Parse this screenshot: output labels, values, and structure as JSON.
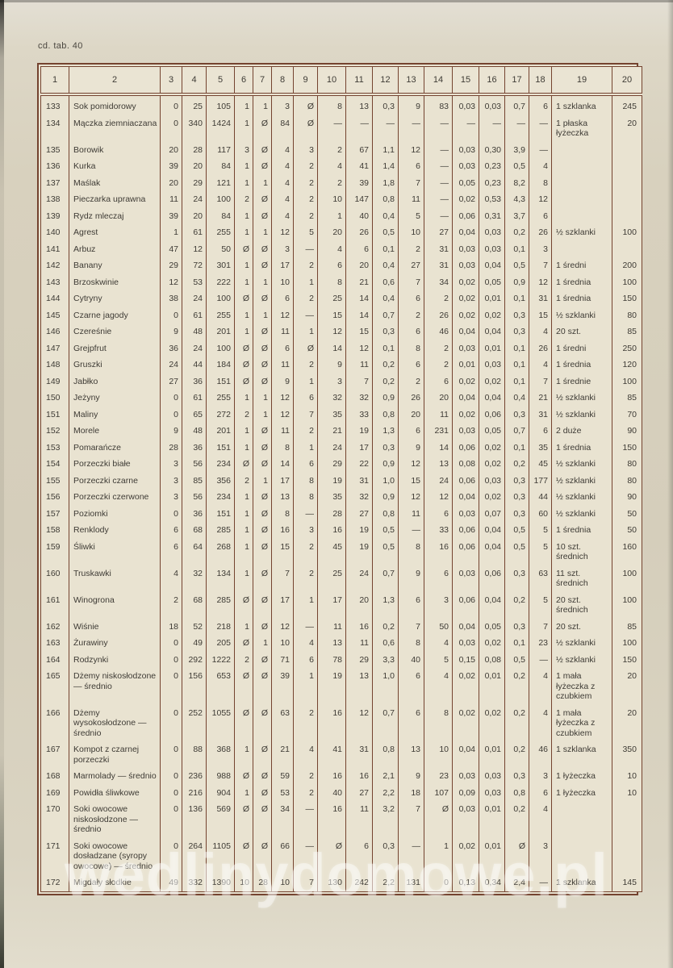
{
  "page": {
    "header_note": "cd. tab. 40",
    "watermark": "wedlinydomowe.pl"
  },
  "colors": {
    "paper": "#d8d1be",
    "cell_background": "#e9e3d1",
    "table_border": "#74432f",
    "text": "#3e3b35",
    "watermark": "rgba(255,255,255,0.42)"
  },
  "table": {
    "headers": [
      "1",
      "2",
      "3",
      "4",
      "5",
      "6",
      "7",
      "8",
      "9",
      "10",
      "11",
      "12",
      "13",
      "14",
      "15",
      "16",
      "17",
      "18",
      "19",
      "20"
    ],
    "rows": [
      {
        "no": "133",
        "name": "Sok pomidorowy",
        "values": [
          "0",
          "25",
          "105",
          "1",
          "1",
          "3",
          "Ø",
          "8",
          "13",
          "0,3",
          "9",
          "83",
          "0,03",
          "0,03",
          "0,7",
          "6"
        ],
        "portion": "1 szklanka",
        "weight": "245"
      },
      {
        "no": "134",
        "name": "Mączka ziemniaczana",
        "values": [
          "0",
          "340",
          "1424",
          "1",
          "Ø",
          "84",
          "Ø",
          "—",
          "—",
          "—",
          "—",
          "—",
          "—",
          "—",
          "—",
          "—"
        ],
        "portion": "1 płaska łyżeczka",
        "weight": "20"
      },
      {
        "no": "135",
        "name": "Borowik",
        "values": [
          "20",
          "28",
          "117",
          "3",
          "Ø",
          "4",
          "3",
          "2",
          "67",
          "1,1",
          "12",
          "—",
          "0,03",
          "0,30",
          "3,9",
          "—"
        ],
        "portion": "",
        "weight": ""
      },
      {
        "no": "136",
        "name": "Kurka",
        "values": [
          "39",
          "20",
          "84",
          "1",
          "Ø",
          "4",
          "2",
          "4",
          "41",
          "1,4",
          "6",
          "—",
          "0,03",
          "0,23",
          "0,5",
          "4"
        ],
        "portion": "",
        "weight": ""
      },
      {
        "no": "137",
        "name": "Maślak",
        "values": [
          "20",
          "29",
          "121",
          "1",
          "1",
          "4",
          "2",
          "2",
          "39",
          "1,8",
          "7",
          "—",
          "0,05",
          "0,23",
          "8,2",
          "8"
        ],
        "portion": "",
        "weight": ""
      },
      {
        "no": "138",
        "name": "Pieczarka uprawna",
        "values": [
          "11",
          "24",
          "100",
          "2",
          "Ø",
          "4",
          "2",
          "10",
          "147",
          "0,8",
          "11",
          "—",
          "0,02",
          "0,53",
          "4,3",
          "12"
        ],
        "portion": "",
        "weight": ""
      },
      {
        "no": "139",
        "name": "Rydz mleczaj",
        "values": [
          "39",
          "20",
          "84",
          "1",
          "Ø",
          "4",
          "2",
          "1",
          "40",
          "0,4",
          "5",
          "—",
          "0,06",
          "0,31",
          "3,7",
          "6"
        ],
        "portion": "",
        "weight": ""
      },
      {
        "no": "140",
        "name": "Agrest",
        "values": [
          "1",
          "61",
          "255",
          "1",
          "1",
          "12",
          "5",
          "20",
          "26",
          "0,5",
          "10",
          "27",
          "0,04",
          "0,03",
          "0,2",
          "26"
        ],
        "portion": "½ szklanki",
        "weight": "100"
      },
      {
        "no": "141",
        "name": "Arbuz",
        "values": [
          "47",
          "12",
          "50",
          "Ø",
          "Ø",
          "3",
          "—",
          "4",
          "6",
          "0,1",
          "2",
          "31",
          "0,03",
          "0,03",
          "0,1",
          "3"
        ],
        "portion": "",
        "weight": ""
      },
      {
        "no": "142",
        "name": "Banany",
        "values": [
          "29",
          "72",
          "301",
          "1",
          "Ø",
          "17",
          "2",
          "6",
          "20",
          "0,4",
          "27",
          "31",
          "0,03",
          "0,04",
          "0,5",
          "7"
        ],
        "portion": "1 średni",
        "weight": "200"
      },
      {
        "no": "143",
        "name": "Brzoskwinie",
        "values": [
          "12",
          "53",
          "222",
          "1",
          "1",
          "10",
          "1",
          "8",
          "21",
          "0,6",
          "7",
          "34",
          "0,02",
          "0,05",
          "0,9",
          "12"
        ],
        "portion": "1 średnia",
        "weight": "100"
      },
      {
        "no": "144",
        "name": "Cytryny",
        "values": [
          "38",
          "24",
          "100",
          "Ø",
          "Ø",
          "6",
          "2",
          "25",
          "14",
          "0,4",
          "6",
          "2",
          "0,02",
          "0,01",
          "0,1",
          "31"
        ],
        "portion": "1 średnia",
        "weight": "150"
      },
      {
        "no": "145",
        "name": "Czarne jagody",
        "values": [
          "0",
          "61",
          "255",
          "1",
          "1",
          "12",
          "—",
          "15",
          "14",
          "0,7",
          "2",
          "26",
          "0,02",
          "0,02",
          "0,3",
          "15"
        ],
        "portion": "½ szklanki",
        "weight": "80"
      },
      {
        "no": "146",
        "name": "Czereśnie",
        "values": [
          "9",
          "48",
          "201",
          "1",
          "Ø",
          "11",
          "1",
          "12",
          "15",
          "0,3",
          "6",
          "46",
          "0,04",
          "0,04",
          "0,3",
          "4"
        ],
        "portion": "20 szt.",
        "weight": "85"
      },
      {
        "no": "147",
        "name": "Grejpfrut",
        "values": [
          "36",
          "24",
          "100",
          "Ø",
          "Ø",
          "6",
          "Ø",
          "14",
          "12",
          "0,1",
          "8",
          "2",
          "0,03",
          "0,01",
          "0,1",
          "26"
        ],
        "portion": "1 średni",
        "weight": "250"
      },
      {
        "no": "148",
        "name": "Gruszki",
        "values": [
          "24",
          "44",
          "184",
          "Ø",
          "Ø",
          "11",
          "2",
          "9",
          "11",
          "0,2",
          "6",
          "2",
          "0,01",
          "0,03",
          "0,1",
          "4"
        ],
        "portion": "1 średnia",
        "weight": "120"
      },
      {
        "no": "149",
        "name": "Jabłko",
        "values": [
          "27",
          "36",
          "151",
          "Ø",
          "Ø",
          "9",
          "1",
          "3",
          "7",
          "0,2",
          "2",
          "6",
          "0,02",
          "0,02",
          "0,1",
          "7"
        ],
        "portion": "1 średnie",
        "weight": "100"
      },
      {
        "no": "150",
        "name": "Jeżyny",
        "values": [
          "0",
          "61",
          "255",
          "1",
          "1",
          "12",
          "6",
          "32",
          "32",
          "0,9",
          "26",
          "20",
          "0,04",
          "0,04",
          "0,4",
          "21"
        ],
        "portion": "½ szklanki",
        "weight": "85"
      },
      {
        "no": "151",
        "name": "Maliny",
        "values": [
          "0",
          "65",
          "272",
          "2",
          "1",
          "12",
          "7",
          "35",
          "33",
          "0,8",
          "20",
          "11",
          "0,02",
          "0,06",
          "0,3",
          "31"
        ],
        "portion": "½ szklanki",
        "weight": "70"
      },
      {
        "no": "152",
        "name": "Morele",
        "values": [
          "9",
          "48",
          "201",
          "1",
          "Ø",
          "11",
          "2",
          "21",
          "19",
          "1,3",
          "6",
          "231",
          "0,03",
          "0,05",
          "0,7",
          "6"
        ],
        "portion": "2 duże",
        "weight": "90"
      },
      {
        "no": "153",
        "name": "Pomarańcze",
        "values": [
          "28",
          "36",
          "151",
          "1",
          "Ø",
          "8",
          "1",
          "24",
          "17",
          "0,3",
          "9",
          "14",
          "0,06",
          "0,02",
          "0,1",
          "35"
        ],
        "portion": "1 średnia",
        "weight": "150"
      },
      {
        "no": "154",
        "name": "Porzeczki białe",
        "values": [
          "3",
          "56",
          "234",
          "Ø",
          "Ø",
          "14",
          "6",
          "29",
          "22",
          "0,9",
          "12",
          "13",
          "0,08",
          "0,02",
          "0,2",
          "45"
        ],
        "portion": "½ szklanki",
        "weight": "80"
      },
      {
        "no": "155",
        "name": "Porzeczki czarne",
        "values": [
          "3",
          "85",
          "356",
          "2",
          "1",
          "17",
          "8",
          "19",
          "31",
          "1,0",
          "15",
          "24",
          "0,06",
          "0,03",
          "0,3",
          "177"
        ],
        "portion": "½ szklanki",
        "weight": "80"
      },
      {
        "no": "156",
        "name": "Porzeczki czerwone",
        "values": [
          "3",
          "56",
          "234",
          "1",
          "Ø",
          "13",
          "8",
          "35",
          "32",
          "0,9",
          "12",
          "12",
          "0,04",
          "0,02",
          "0,3",
          "44"
        ],
        "portion": "½ szklanki",
        "weight": "90"
      },
      {
        "no": "157",
        "name": "Poziomki",
        "values": [
          "0",
          "36",
          "151",
          "1",
          "Ø",
          "8",
          "—",
          "28",
          "27",
          "0,8",
          "11",
          "6",
          "0,03",
          "0,07",
          "0,3",
          "60"
        ],
        "portion": "½ szklanki",
        "weight": "50"
      },
      {
        "no": "158",
        "name": "Renklody",
        "values": [
          "6",
          "68",
          "285",
          "1",
          "Ø",
          "16",
          "3",
          "16",
          "19",
          "0,5",
          "—",
          "33",
          "0,06",
          "0,04",
          "0,5",
          "5"
        ],
        "portion": "1 średnia",
        "weight": "50"
      },
      {
        "no": "159",
        "name": "Śliwki",
        "values": [
          "6",
          "64",
          "268",
          "1",
          "Ø",
          "15",
          "2",
          "45",
          "19",
          "0,5",
          "8",
          "16",
          "0,06",
          "0,04",
          "0,5",
          "5"
        ],
        "portion": "10 szt. średnich",
        "weight": "160"
      },
      {
        "no": "160",
        "name": "Truskawki",
        "values": [
          "4",
          "32",
          "134",
          "1",
          "Ø",
          "7",
          "2",
          "25",
          "24",
          "0,7",
          "9",
          "6",
          "0,03",
          "0,06",
          "0,3",
          "63"
        ],
        "portion": "11 szt. średnich",
        "weight": "100"
      },
      {
        "no": "161",
        "name": "Winogrona",
        "values": [
          "2",
          "68",
          "285",
          "Ø",
          "Ø",
          "17",
          "1",
          "17",
          "20",
          "1,3",
          "6",
          "3",
          "0,06",
          "0,04",
          "0,2",
          "5"
        ],
        "portion": "20 szt. średnich",
        "weight": "100"
      },
      {
        "no": "162",
        "name": "Wiśnie",
        "values": [
          "18",
          "52",
          "218",
          "1",
          "Ø",
          "12",
          "—",
          "11",
          "16",
          "0,2",
          "7",
          "50",
          "0,04",
          "0,05",
          "0,3",
          "7"
        ],
        "portion": "20 szt.",
        "weight": "85"
      },
      {
        "no": "163",
        "name": "Żurawiny",
        "values": [
          "0",
          "49",
          "205",
          "Ø",
          "1",
          "10",
          "4",
          "13",
          "11",
          "0,6",
          "8",
          "4",
          "0,03",
          "0,02",
          "0,1",
          "23"
        ],
        "portion": "½ szklanki",
        "weight": "100"
      },
      {
        "no": "164",
        "name": "Rodzynki",
        "values": [
          "0",
          "292",
          "1222",
          "2",
          "Ø",
          "71",
          "6",
          "78",
          "29",
          "3,3",
          "40",
          "5",
          "0,15",
          "0,08",
          "0,5",
          "—"
        ],
        "portion": "½ szklanki",
        "weight": "150"
      },
      {
        "no": "165",
        "name": "Dżemy niskosłodzone — średnio",
        "values": [
          "0",
          "156",
          "653",
          "Ø",
          "Ø",
          "39",
          "1",
          "19",
          "13",
          "1,0",
          "6",
          "4",
          "0,02",
          "0,01",
          "0,2",
          "4"
        ],
        "portion": "1 mała łyżeczka z czubkiem",
        "weight": "20"
      },
      {
        "no": "166",
        "name": "Dżemy wysokosłodzone — średnio",
        "values": [
          "0",
          "252",
          "1055",
          "Ø",
          "Ø",
          "63",
          "2",
          "16",
          "12",
          "0,7",
          "6",
          "8",
          "0,02",
          "0,02",
          "0,2",
          "4"
        ],
        "portion": "1 mała łyżeczka z czubkiem",
        "weight": "20"
      },
      {
        "no": "167",
        "name": "Kompot z czarnej porzeczki",
        "values": [
          "0",
          "88",
          "368",
          "1",
          "Ø",
          "21",
          "4",
          "41",
          "31",
          "0,8",
          "13",
          "10",
          "0,04",
          "0,01",
          "0,2",
          "46"
        ],
        "portion": "1 szklanka",
        "weight": "350"
      },
      {
        "no": "168",
        "name": "Marmolady — średnio",
        "values": [
          "0",
          "236",
          "988",
          "Ø",
          "Ø",
          "59",
          "2",
          "16",
          "16",
          "2,1",
          "9",
          "23",
          "0,03",
          "0,03",
          "0,3",
          "3"
        ],
        "portion": "1 łyżeczka",
        "weight": "10"
      },
      {
        "no": "169",
        "name": "Powidła śliwkowe",
        "values": [
          "0",
          "216",
          "904",
          "1",
          "Ø",
          "53",
          "2",
          "40",
          "27",
          "2,2",
          "18",
          "107",
          "0,09",
          "0,03",
          "0,8",
          "6"
        ],
        "portion": "1 łyżeczka",
        "weight": "10"
      },
      {
        "no": "170",
        "name": "Soki owocowe niskosłodzone — średnio",
        "values": [
          "0",
          "136",
          "569",
          "Ø",
          "Ø",
          "34",
          "—",
          "16",
          "11",
          "3,2",
          "7",
          "Ø",
          "0,03",
          "0,01",
          "0,2",
          "4"
        ],
        "portion": "",
        "weight": ""
      },
      {
        "no": "171",
        "name": "Soki owocowe dosładzane (syropy owocowe) — średnio",
        "values": [
          "0",
          "264",
          "1105",
          "Ø",
          "Ø",
          "66",
          "—",
          "Ø",
          "6",
          "0,3",
          "—",
          "1",
          "0,02",
          "0,01",
          "Ø",
          "3"
        ],
        "portion": "",
        "weight": ""
      },
      {
        "no": "172",
        "name": "Migdały słodkie",
        "values": [
          "49",
          "332",
          "1390",
          "10",
          "28",
          "10",
          "7",
          "130",
          "242",
          "2,2",
          "131",
          "0",
          "0,13",
          "0,34",
          "2,4",
          "—"
        ],
        "portion": "1 szklanka",
        "weight": "145"
      }
    ]
  }
}
